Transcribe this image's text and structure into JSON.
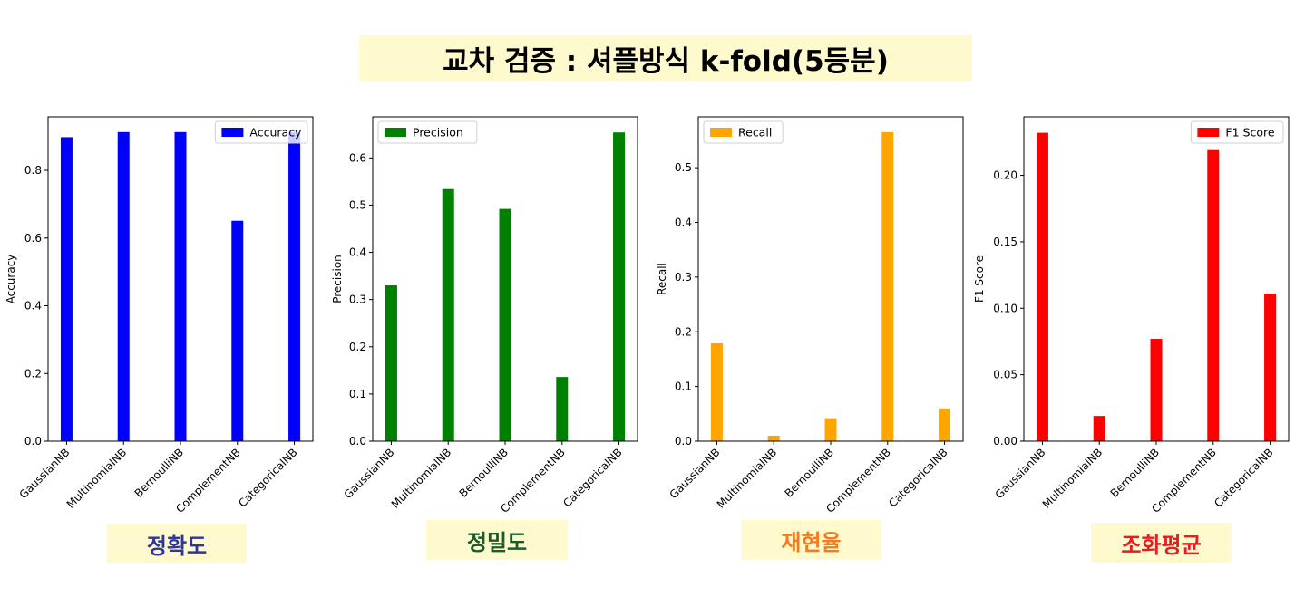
{
  "page": {
    "title": "교차 검증 : 셔플방식 k-fold(5등분)"
  },
  "captions": [
    {
      "text": "정확도",
      "color": "#2f3699"
    },
    {
      "text": "정밀도",
      "color": "#1a5c2a"
    },
    {
      "text": "재현율",
      "color": "#f47b20"
    },
    {
      "text": "조화평균",
      "color": "#e31e24"
    }
  ],
  "chart_data": [
    {
      "type": "bar",
      "categories": [
        "GaussianNB",
        "MultinomialNB",
        "BernoulliNB",
        "ComplementNB",
        "CategoricalNB"
      ],
      "series": [
        {
          "name": "Accuracy",
          "values": [
            0.898,
            0.913,
            0.913,
            0.651,
            0.913
          ],
          "color": "#0000ff"
        }
      ],
      "ylabel": "Accuracy",
      "ylim": [
        0,
        0.958
      ],
      "yticks": [
        0.0,
        0.2,
        0.4,
        0.6,
        0.8
      ],
      "ytick_labels": [
        "0.0",
        "0.2",
        "0.4",
        "0.6",
        "0.8"
      ],
      "legend": "upper right"
    },
    {
      "type": "bar",
      "categories": [
        "GaussianNB",
        "MultinomialNB",
        "BernoulliNB",
        "ComplementNB",
        "CategoricalNB"
      ],
      "series": [
        {
          "name": "Precision",
          "values": [
            0.33,
            0.534,
            0.492,
            0.136,
            0.654
          ],
          "color": "#008000"
        }
      ],
      "ylabel": "Precision",
      "ylim": [
        0,
        0.687
      ],
      "yticks": [
        0.0,
        0.1,
        0.2,
        0.3,
        0.4,
        0.5,
        0.6
      ],
      "ytick_labels": [
        "0.0",
        "0.1",
        "0.2",
        "0.3",
        "0.4",
        "0.5",
        "0.6"
      ],
      "legend": "upper left"
    },
    {
      "type": "bar",
      "categories": [
        "GaussianNB",
        "MultinomialNB",
        "BernoulliNB",
        "ComplementNB",
        "CategoricalNB"
      ],
      "series": [
        {
          "name": "Recall",
          "values": [
            0.179,
            0.01,
            0.042,
            0.565,
            0.06
          ],
          "color": "#ffa500"
        }
      ],
      "ylabel": "Recall",
      "ylim": [
        0,
        0.593
      ],
      "yticks": [
        0.0,
        0.1,
        0.2,
        0.3,
        0.4,
        0.5
      ],
      "ytick_labels": [
        "0.0",
        "0.1",
        "0.2",
        "0.3",
        "0.4",
        "0.5"
      ],
      "legend": "upper left"
    },
    {
      "type": "bar",
      "categories": [
        "GaussianNB",
        "MultinomialNB",
        "BernoulliNB",
        "ComplementNB",
        "CategoricalNB"
      ],
      "series": [
        {
          "name": "F1 Score",
          "values": [
            0.232,
            0.019,
            0.077,
            0.219,
            0.111
          ],
          "color": "#ff0000"
        }
      ],
      "ylabel": "F1 Score",
      "ylim": [
        0,
        0.244
      ],
      "yticks": [
        0.0,
        0.05,
        0.1,
        0.15,
        0.2
      ],
      "ytick_labels": [
        "0.00",
        "0.05",
        "0.10",
        "0.15",
        "0.20"
      ],
      "legend": "upper right"
    }
  ]
}
